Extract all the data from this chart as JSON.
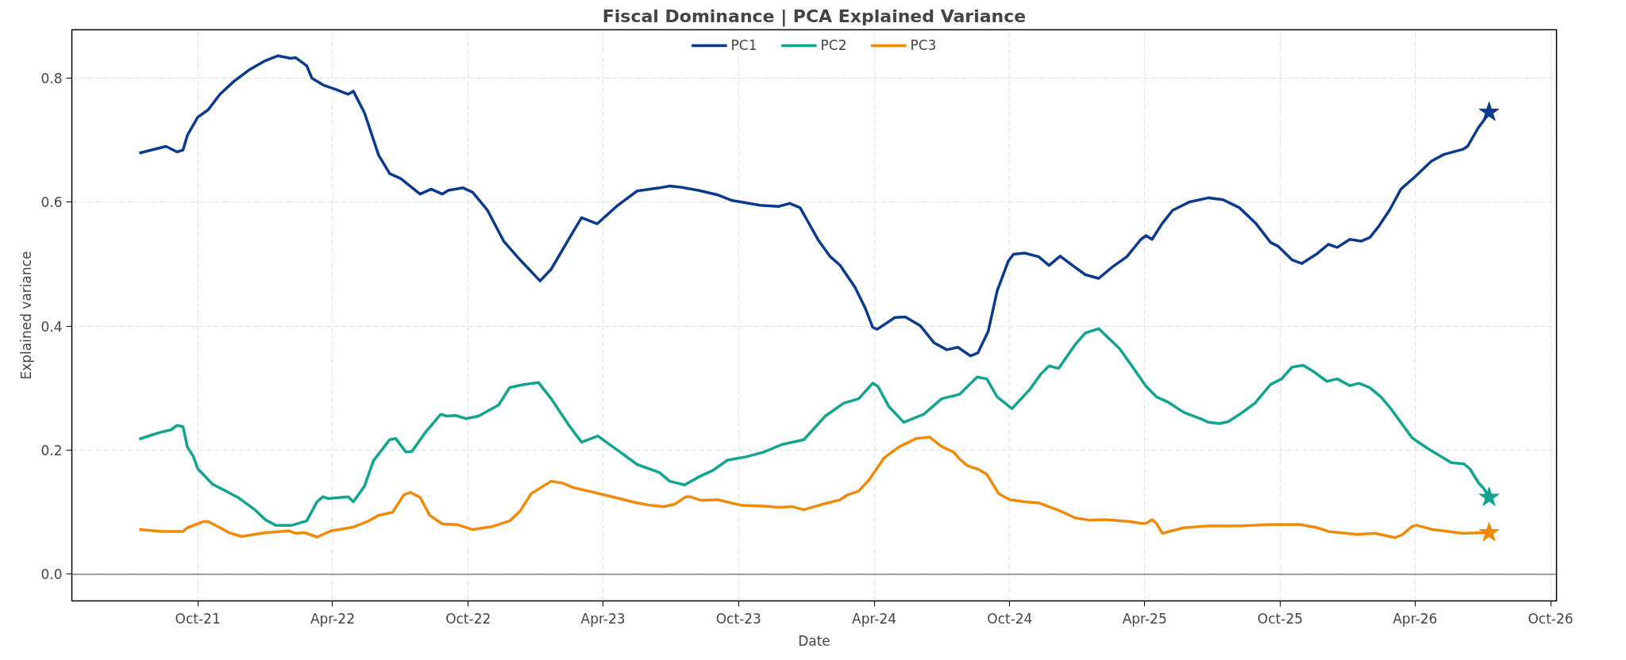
{
  "chart_data": {
    "type": "line",
    "title": "Fiscal Dominance | PCA Explained Variance",
    "xlabel": "Date",
    "ylabel": "Explained variance",
    "xlim": [
      "2021-04-14",
      "2026-10-09"
    ],
    "ylim": [
      -0.043,
      0.878
    ],
    "xticks": [
      {
        "value": "2021-10-01",
        "label": "Oct-21"
      },
      {
        "value": "2022-04-01",
        "label": "Apr-22"
      },
      {
        "value": "2022-10-01",
        "label": "Oct-22"
      },
      {
        "value": "2023-04-01",
        "label": "Apr-23"
      },
      {
        "value": "2023-10-01",
        "label": "Oct-23"
      },
      {
        "value": "2024-04-01",
        "label": "Apr-24"
      },
      {
        "value": "2024-10-01",
        "label": "Oct-24"
      },
      {
        "value": "2025-04-01",
        "label": "Apr-25"
      },
      {
        "value": "2025-10-01",
        "label": "Oct-25"
      },
      {
        "value": "2026-04-01",
        "label": "Apr-26"
      },
      {
        "value": "2026-10-01",
        "label": "Oct-26"
      }
    ],
    "yticks": [
      {
        "value": 0,
        "label": "0.0"
      },
      {
        "value": 0.2,
        "label": "0.2"
      },
      {
        "value": 0.4,
        "label": "0.4"
      },
      {
        "value": 0.6,
        "label": "0.6"
      },
      {
        "value": 0.8,
        "label": "0.8"
      }
    ],
    "grid": true,
    "legend": "top",
    "line_style": "solid",
    "ref_lines": [
      {
        "axis": "y",
        "value": 0,
        "color": "#808080"
      }
    ],
    "series": [
      {
        "name": "PC1",
        "color": "#0b3a8f",
        "x": [
          "2021-07-14",
          "2021-08-19",
          "2021-09-03",
          "2021-09-11",
          "2021-09-17",
          "2021-10-01",
          "2021-10-15",
          "2021-10-31",
          "2021-11-19",
          "2021-12-09",
          "2021-12-31",
          "2022-01-17",
          "2022-02-03",
          "2022-02-10",
          "2022-02-25",
          "2022-03-04",
          "2022-03-19",
          "2022-04-05",
          "2022-04-22",
          "2022-04-29",
          "2022-05-14",
          "2022-06-02",
          "2022-06-17",
          "2022-07-02",
          "2022-07-28",
          "2022-08-12",
          "2022-08-27",
          "2022-09-04",
          "2022-09-24",
          "2022-10-07",
          "2022-10-27",
          "2022-11-18",
          "2022-12-10",
          "2023-01-06",
          "2023-01-21",
          "2023-02-19",
          "2023-03-03",
          "2023-03-24",
          "2023-04-20",
          "2023-05-17",
          "2023-06-16",
          "2023-06-30",
          "2023-07-15",
          "2023-08-08",
          "2023-09-02",
          "2023-09-21",
          "2023-10-30",
          "2023-11-24",
          "2023-12-09",
          "2023-12-23",
          "2024-01-17",
          "2024-02-01",
          "2024-02-15",
          "2024-03-06",
          "2024-03-20",
          "2024-03-30",
          "2024-04-05",
          "2024-04-29",
          "2024-05-13",
          "2024-06-02",
          "2024-06-21",
          "2024-07-08",
          "2024-07-23",
          "2024-08-09",
          "2024-08-19",
          "2024-09-02",
          "2024-09-14",
          "2024-09-29",
          "2024-10-06",
          "2024-10-21",
          "2024-11-09",
          "2024-11-23",
          "2024-12-08",
          "2024-12-28",
          "2025-01-11",
          "2025-01-29",
          "2025-02-16",
          "2025-03-08",
          "2025-03-27",
          "2025-04-03",
          "2025-04-11",
          "2025-04-25",
          "2025-05-09",
          "2025-05-31",
          "2025-06-26",
          "2025-07-16",
          "2025-08-07",
          "2025-08-29",
          "2025-09-18",
          "2025-09-28",
          "2025-10-17",
          "2025-10-30",
          "2025-11-20",
          "2025-12-05",
          "2025-12-17",
          "2026-01-03",
          "2026-01-18",
          "2026-01-30",
          "2026-02-11",
          "2026-02-26",
          "2026-03-13",
          "2026-04-01",
          "2026-04-23",
          "2026-05-10",
          "2026-06-04",
          "2026-06-11",
          "2026-06-26",
          "2026-07-03",
          "2026-07-10"
        ],
        "values": [
          0.679,
          0.69,
          0.681,
          0.684,
          0.708,
          0.737,
          0.749,
          0.774,
          0.795,
          0.813,
          0.828,
          0.836,
          0.832,
          0.833,
          0.82,
          0.8,
          0.789,
          0.782,
          0.774,
          0.779,
          0.744,
          0.676,
          0.646,
          0.638,
          0.613,
          0.621,
          0.613,
          0.619,
          0.623,
          0.616,
          0.587,
          0.537,
          0.507,
          0.473,
          0.492,
          0.551,
          0.575,
          0.565,
          0.594,
          0.618,
          0.623,
          0.626,
          0.624,
          0.619,
          0.612,
          0.603,
          0.595,
          0.593,
          0.598,
          0.591,
          0.538,
          0.513,
          0.498,
          0.463,
          0.429,
          0.398,
          0.395,
          0.414,
          0.415,
          0.401,
          0.373,
          0.362,
          0.366,
          0.352,
          0.357,
          0.392,
          0.457,
          0.505,
          0.516,
          0.518,
          0.512,
          0.498,
          0.513,
          0.495,
          0.483,
          0.477,
          0.495,
          0.512,
          0.54,
          0.546,
          0.54,
          0.566,
          0.587,
          0.6,
          0.607,
          0.604,
          0.591,
          0.566,
          0.535,
          0.529,
          0.507,
          0.501,
          0.517,
          0.532,
          0.527,
          0.54,
          0.537,
          0.543,
          0.561,
          0.588,
          0.621,
          0.641,
          0.666,
          0.677,
          0.685,
          0.69,
          0.721,
          0.732,
          0.745
        ]
      },
      {
        "name": "PC2",
        "color": "#12a58e",
        "x": [
          "2021-07-14",
          "2021-08-09",
          "2021-08-26",
          "2021-09-03",
          "2021-09-11",
          "2021-09-17",
          "2021-09-25",
          "2021-10-01",
          "2021-10-21",
          "2021-11-05",
          "2021-11-24",
          "2021-12-16",
          "2021-12-31",
          "2022-01-14",
          "2022-02-05",
          "2022-02-25",
          "2022-03-11",
          "2022-03-19",
          "2022-03-26",
          "2022-04-22",
          "2022-04-29",
          "2022-05-14",
          "2022-05-26",
          "2022-06-17",
          "2022-06-25",
          "2022-07-09",
          "2022-07-17",
          "2022-08-05",
          "2022-08-25",
          "2022-09-02",
          "2022-09-14",
          "2022-09-28",
          "2022-10-15",
          "2022-11-11",
          "2022-11-26",
          "2022-12-15",
          "2023-01-04",
          "2023-01-21",
          "2023-02-14",
          "2023-03-03",
          "2023-03-25",
          "2023-04-23",
          "2023-05-17",
          "2023-06-16",
          "2023-06-30",
          "2023-07-20",
          "2023-08-10",
          "2023-08-28",
          "2023-09-16",
          "2023-10-10",
          "2023-11-04",
          "2023-11-28",
          "2023-12-28",
          "2024-01-26",
          "2024-02-20",
          "2024-03-11",
          "2024-03-30",
          "2024-04-06",
          "2024-04-21",
          "2024-05-11",
          "2024-06-07",
          "2024-07-01",
          "2024-07-25",
          "2024-08-18",
          "2024-08-31",
          "2024-09-14",
          "2024-10-04",
          "2024-10-28",
          "2024-11-12",
          "2024-11-23",
          "2024-12-06",
          "2024-12-28",
          "2025-01-11",
          "2025-01-29",
          "2025-02-26",
          "2025-03-13",
          "2025-04-03",
          "2025-04-17",
          "2025-05-02",
          "2025-05-24",
          "2025-06-17",
          "2025-06-26",
          "2025-07-11",
          "2025-07-23",
          "2025-08-11",
          "2025-08-28",
          "2025-09-18",
          "2025-10-03",
          "2025-10-17",
          "2025-11-01",
          "2025-11-16",
          "2025-12-03",
          "2025-12-17",
          "2026-01-03",
          "2026-01-15",
          "2026-01-30",
          "2026-02-14",
          "2026-02-26",
          "2026-03-28",
          "2026-04-18",
          "2026-05-20",
          "2026-06-06",
          "2026-06-14",
          "2026-06-26",
          "2026-07-03",
          "2026-07-10"
        ],
        "values": [
          0.218,
          0.228,
          0.233,
          0.24,
          0.238,
          0.205,
          0.19,
          0.17,
          0.145,
          0.136,
          0.124,
          0.105,
          0.088,
          0.079,
          0.079,
          0.086,
          0.117,
          0.125,
          0.122,
          0.125,
          0.117,
          0.142,
          0.183,
          0.217,
          0.219,
          0.197,
          0.198,
          0.23,
          0.258,
          0.255,
          0.256,
          0.251,
          0.255,
          0.273,
          0.301,
          0.306,
          0.309,
          0.283,
          0.24,
          0.213,
          0.223,
          0.198,
          0.177,
          0.164,
          0.15,
          0.144,
          0.158,
          0.168,
          0.184,
          0.189,
          0.197,
          0.209,
          0.217,
          0.255,
          0.276,
          0.283,
          0.308,
          0.303,
          0.27,
          0.245,
          0.258,
          0.283,
          0.29,
          0.318,
          0.315,
          0.286,
          0.267,
          0.298,
          0.323,
          0.336,
          0.332,
          0.37,
          0.389,
          0.396,
          0.364,
          0.339,
          0.303,
          0.286,
          0.278,
          0.261,
          0.25,
          0.245,
          0.243,
          0.246,
          0.261,
          0.276,
          0.306,
          0.315,
          0.334,
          0.337,
          0.326,
          0.311,
          0.315,
          0.304,
          0.308,
          0.301,
          0.286,
          0.269,
          0.22,
          0.203,
          0.18,
          0.178,
          0.17,
          0.147,
          0.138,
          0.124
        ]
      },
      {
        "name": "PC3",
        "color": "#f08a0c",
        "x": [
          "2021-07-14",
          "2021-08-14",
          "2021-09-11",
          "2021-09-17",
          "2021-10-09",
          "2021-10-15",
          "2021-10-31",
          "2021-11-12",
          "2021-11-29",
          "2021-12-31",
          "2022-02-01",
          "2022-02-10",
          "2022-02-22",
          "2022-03-11",
          "2022-03-30",
          "2022-04-29",
          "2022-05-18",
          "2022-06-02",
          "2022-06-21",
          "2022-07-06",
          "2022-07-15",
          "2022-07-28",
          "2022-08-10",
          "2022-08-27",
          "2022-09-16",
          "2022-10-07",
          "2022-11-03",
          "2022-11-26",
          "2022-12-10",
          "2022-12-25",
          "2023-01-21",
          "2023-02-05",
          "2023-02-19",
          "2023-03-16",
          "2023-04-23",
          "2023-05-17",
          "2023-06-05",
          "2023-06-22",
          "2023-07-07",
          "2023-07-22",
          "2023-07-27",
          "2023-08-12",
          "2023-09-03",
          "2023-10-05",
          "2023-11-04",
          "2023-11-23",
          "2023-12-12",
          "2023-12-28",
          "2024-01-26",
          "2024-02-15",
          "2024-02-25",
          "2024-03-11",
          "2024-03-25",
          "2024-04-14",
          "2024-05-04",
          "2024-05-28",
          "2024-06-15",
          "2024-07-01",
          "2024-07-17",
          "2024-07-25",
          "2024-08-05",
          "2024-08-20",
          "2024-08-31",
          "2024-09-16",
          "2024-10-01",
          "2024-10-21",
          "2024-11-09",
          "2024-12-08",
          "2024-12-28",
          "2025-01-17",
          "2025-02-06",
          "2025-03-13",
          "2025-03-27",
          "2025-04-03",
          "2025-04-11",
          "2025-04-17",
          "2025-04-25",
          "2025-05-24",
          "2025-06-26",
          "2025-08-07",
          "2025-09-18",
          "2025-10-28",
          "2025-11-20",
          "2025-12-05",
          "2026-01-13",
          "2026-02-06",
          "2026-03-05",
          "2026-03-15",
          "2026-03-28",
          "2026-04-03",
          "2026-04-25",
          "2026-06-04",
          "2026-07-10"
        ],
        "values": [
          0.072,
          0.069,
          0.069,
          0.075,
          0.085,
          0.085,
          0.075,
          0.067,
          0.061,
          0.067,
          0.07,
          0.066,
          0.067,
          0.06,
          0.07,
          0.076,
          0.085,
          0.095,
          0.1,
          0.128,
          0.132,
          0.124,
          0.095,
          0.081,
          0.08,
          0.072,
          0.077,
          0.086,
          0.102,
          0.13,
          0.15,
          0.147,
          0.14,
          0.133,
          0.122,
          0.115,
          0.111,
          0.109,
          0.113,
          0.125,
          0.125,
          0.119,
          0.12,
          0.111,
          0.11,
          0.108,
          0.109,
          0.104,
          0.114,
          0.12,
          0.128,
          0.134,
          0.152,
          0.187,
          0.205,
          0.219,
          0.221,
          0.206,
          0.197,
          0.186,
          0.175,
          0.169,
          0.161,
          0.13,
          0.12,
          0.117,
          0.115,
          0.102,
          0.091,
          0.087,
          0.088,
          0.085,
          0.082,
          0.082,
          0.088,
          0.082,
          0.066,
          0.075,
          0.078,
          0.078,
          0.08,
          0.08,
          0.075,
          0.069,
          0.064,
          0.066,
          0.059,
          0.064,
          0.077,
          0.079,
          0.072,
          0.066,
          0.067
        ]
      },
      {
        "type": "scatter",
        "marker": "star",
        "color": "#0b3a8f",
        "x": [
          "2026-07-10"
        ],
        "values": [
          0.745
        ]
      },
      {
        "type": "scatter",
        "marker": "star",
        "color": "#12a58e",
        "x": [
          "2026-07-10"
        ],
        "values": [
          0.124
        ]
      },
      {
        "type": "scatter",
        "marker": "star",
        "color": "#f08a0c",
        "x": [
          "2026-07-10"
        ],
        "values": [
          0.067
        ]
      }
    ]
  }
}
